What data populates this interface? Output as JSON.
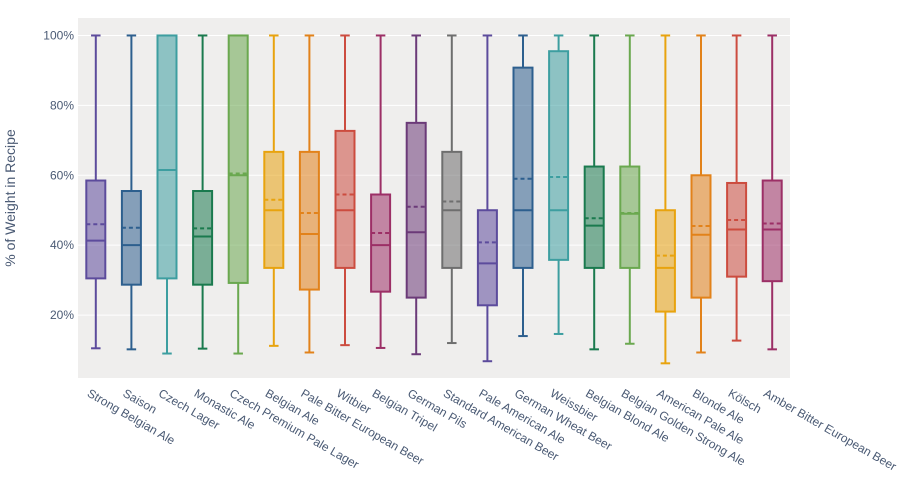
{
  "chart_data": {
    "type": "box",
    "title": "",
    "xlabel": "",
    "ylabel": "% of Weight in Recipe",
    "ylim": [
      0.02,
      1.05
    ],
    "yticks": [
      {
        "value": 0.2,
        "label": "20%"
      },
      {
        "value": 0.4,
        "label": "40%"
      },
      {
        "value": 0.6,
        "label": "60%"
      },
      {
        "value": 0.8,
        "label": "80%"
      },
      {
        "value": 1.0,
        "label": "100%"
      }
    ],
    "grid": true,
    "legend": "none",
    "categories": [
      "Strong Belgian Ale",
      "Saison",
      "Czech Lager",
      "Monastic Ale",
      "Czech Premium Pale Lager",
      "Belgian Ale",
      "Pale Bitter European Beer",
      "Witbier",
      "Belgian Tripel",
      "German Pils",
      "Standard American Beer",
      "Pale American Ale",
      "German Wheat Beer",
      "Weissbier",
      "Belgian Blond Ale",
      "Belgian Golden Strong Ale",
      "American Pale Ale",
      "Blonde Ale",
      "Kölsch",
      "Amber Bitter European Beer"
    ],
    "boxes": [
      {
        "min": 0.105,
        "q1": 0.305,
        "median": 0.413,
        "mean": 0.46,
        "q3": 0.585,
        "max": 1.0,
        "color": "#5c4b9c"
      },
      {
        "min": 0.102,
        "q1": 0.287,
        "median": 0.4,
        "mean": 0.45,
        "q3": 0.555,
        "max": 1.0,
        "color": "#2d5f8e"
      },
      {
        "min": 0.09,
        "q1": 0.305,
        "median": 0.615,
        "mean": 0.615,
        "q3": 1.0,
        "max": 1.0,
        "color": "#3d9ea0"
      },
      {
        "min": 0.104,
        "q1": 0.287,
        "median": 0.425,
        "mean": 0.448,
        "q3": 0.555,
        "max": 1.0,
        "color": "#1a7a4e"
      },
      {
        "min": 0.09,
        "q1": 0.292,
        "median": 0.6,
        "mean": 0.605,
        "q3": 1.0,
        "max": 1.0,
        "color": "#6aa84f"
      },
      {
        "min": 0.112,
        "q1": 0.335,
        "median": 0.5,
        "mean": 0.53,
        "q3": 0.667,
        "max": 1.0,
        "color": "#e8a30e"
      },
      {
        "min": 0.093,
        "q1": 0.273,
        "median": 0.432,
        "mean": 0.492,
        "q3": 0.667,
        "max": 1.0,
        "color": "#e2821a"
      },
      {
        "min": 0.114,
        "q1": 0.335,
        "median": 0.5,
        "mean": 0.545,
        "q3": 0.727,
        "max": 1.0,
        "color": "#cc4c3f"
      },
      {
        "min": 0.106,
        "q1": 0.267,
        "median": 0.4,
        "mean": 0.435,
        "q3": 0.545,
        "max": 1.0,
        "color": "#9c2f66"
      },
      {
        "min": 0.088,
        "q1": 0.25,
        "median": 0.437,
        "mean": 0.51,
        "q3": 0.75,
        "max": 1.0,
        "color": "#6b3a78"
      },
      {
        "min": 0.12,
        "q1": 0.335,
        "median": 0.5,
        "mean": 0.525,
        "q3": 0.667,
        "max": 1.0,
        "color": "#6e6e6e"
      },
      {
        "min": 0.068,
        "q1": 0.228,
        "median": 0.348,
        "mean": 0.408,
        "q3": 0.5,
        "max": 1.0,
        "color": "#5c4b9c"
      },
      {
        "min": 0.14,
        "q1": 0.335,
        "median": 0.5,
        "mean": 0.59,
        "q3": 0.908,
        "max": 1.0,
        "color": "#2d5f8e"
      },
      {
        "min": 0.146,
        "q1": 0.358,
        "median": 0.5,
        "mean": 0.595,
        "q3": 0.955,
        "max": 1.0,
        "color": "#3d9ea0"
      },
      {
        "min": 0.102,
        "q1": 0.335,
        "median": 0.456,
        "mean": 0.477,
        "q3": 0.625,
        "max": 1.0,
        "color": "#1a7a4e"
      },
      {
        "min": 0.118,
        "q1": 0.335,
        "median": 0.49,
        "mean": 0.492,
        "q3": 0.625,
        "max": 1.0,
        "color": "#6aa84f"
      },
      {
        "min": 0.062,
        "q1": 0.21,
        "median": 0.335,
        "mean": 0.37,
        "q3": 0.5,
        "max": 1.0,
        "color": "#e8a30e"
      },
      {
        "min": 0.093,
        "q1": 0.25,
        "median": 0.43,
        "mean": 0.455,
        "q3": 0.6,
        "max": 1.0,
        "color": "#e2821a"
      },
      {
        "min": 0.127,
        "q1": 0.31,
        "median": 0.445,
        "mean": 0.472,
        "q3": 0.578,
        "max": 1.0,
        "color": "#cc4c3f"
      },
      {
        "min": 0.102,
        "q1": 0.297,
        "median": 0.445,
        "mean": 0.462,
        "q3": 0.585,
        "max": 1.0,
        "color": "#9c2f66"
      }
    ]
  }
}
